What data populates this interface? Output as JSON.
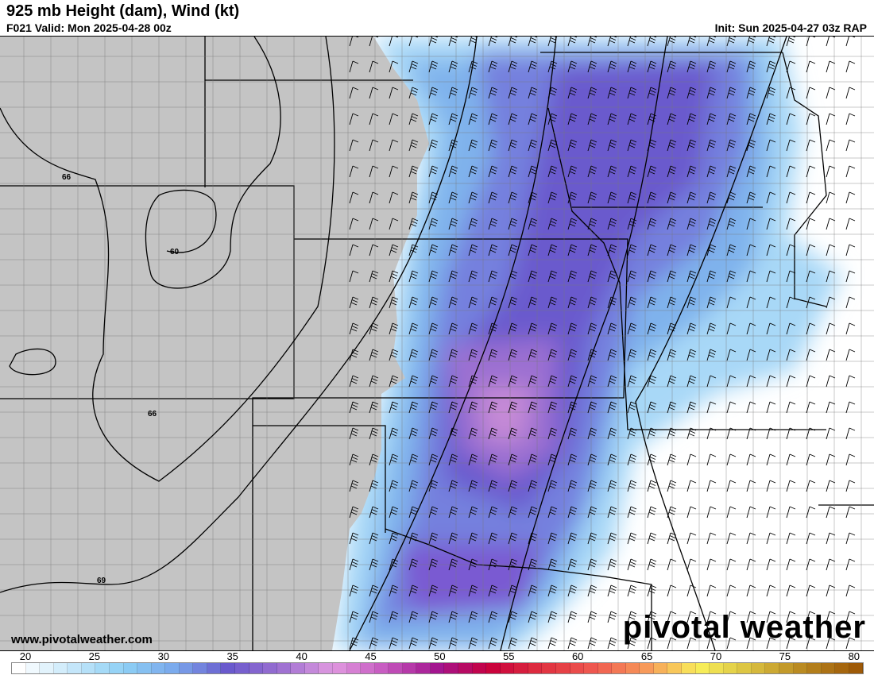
{
  "header": {
    "title": "925 mb Height (dam), Wind (kt)",
    "valid": "F021 Valid: Mon 2025-04-28 00z",
    "init": "Init: Sun 2025-04-27 03z RAP"
  },
  "map": {
    "contour_labels": [
      "66",
      "60",
      "66",
      "69"
    ],
    "terrain_mask_color": "#c4c4c4"
  },
  "footer": {
    "website": "www.pivotalweather.com",
    "logo": "pivotal weather"
  },
  "colorbar": {
    "units": "kt",
    "tick_labels": [
      "20",
      "25",
      "30",
      "35",
      "40",
      "45",
      "50",
      "55",
      "60",
      "65",
      "70",
      "75",
      "80"
    ],
    "stops": [
      "#ffffff",
      "#c8e8fa",
      "#8ed0f5",
      "#7aa8ec",
      "#6a5acd",
      "#9b6fd1",
      "#e09ae0",
      "#c659c0",
      "#a3158f",
      "#c8003c",
      "#e03040",
      "#ef5a50",
      "#f79a5a",
      "#f8ef5a",
      "#d9c040",
      "#b88720",
      "#9e5a08"
    ]
  }
}
